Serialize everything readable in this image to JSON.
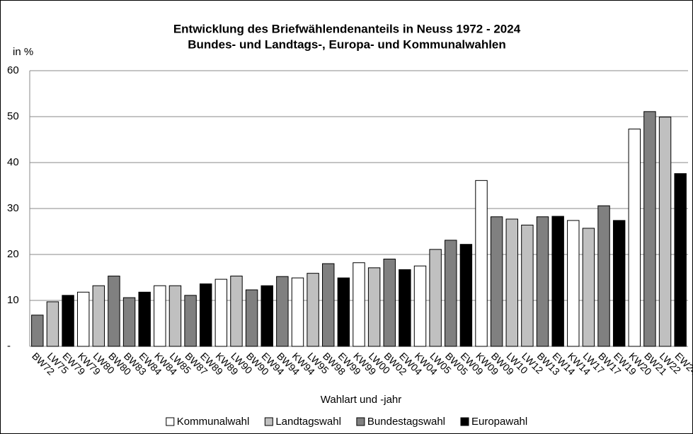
{
  "chart_data": {
    "type": "bar",
    "title": "Entwicklung des Briefwählendenanteils in Neuss 1972 - 2024",
    "subtitle": "Bundes- und Landtags-, Europa- und Kommunalwahlen",
    "y_label": "in %",
    "x_label": "Wahlart und -jahr",
    "categories": [
      "BW72",
      "LW75",
      "EW79",
      "KW79",
      "LW80",
      "BW80",
      "BW83",
      "EW84",
      "KW84",
      "LW85",
      "BW87",
      "EW89",
      "KW89",
      "LW90",
      "BW90",
      "EW94",
      "BW94",
      "KW94",
      "LW95",
      "BW98",
      "EW99",
      "KW99",
      "LW00",
      "BW02",
      "EW04",
      "KW04",
      "LW05",
      "BW05",
      "EW09",
      "KW09",
      "BW09",
      "LW10",
      "LW12",
      "BW13",
      "EW14",
      "KW14",
      "LW17",
      "BW17",
      "EW19",
      "KW20",
      "BW21",
      "LW22",
      "EW24"
    ],
    "series": [
      {
        "name": "Kommunalwahl",
        "color": "#ffffff",
        "values": [
          null,
          null,
          null,
          11.8,
          null,
          null,
          null,
          null,
          13.2,
          null,
          null,
          null,
          14.6,
          null,
          null,
          null,
          null,
          14.9,
          null,
          null,
          null,
          18.2,
          null,
          null,
          null,
          17.5,
          null,
          null,
          null,
          36.1,
          null,
          null,
          null,
          null,
          null,
          27.4,
          null,
          null,
          null,
          47.3,
          null,
          null,
          null
        ]
      },
      {
        "name": "Landtagswahl",
        "color": "#c0c0c0",
        "values": [
          null,
          9.7,
          null,
          null,
          13.2,
          null,
          null,
          null,
          null,
          13.2,
          null,
          null,
          null,
          15.3,
          null,
          null,
          null,
          null,
          15.9,
          null,
          null,
          null,
          17.1,
          null,
          null,
          null,
          21.1,
          null,
          null,
          null,
          null,
          27.7,
          26.4,
          null,
          null,
          null,
          25.7,
          null,
          null,
          null,
          null,
          49.9,
          null
        ]
      },
      {
        "name": "Bundestagswahl",
        "color": "#808080",
        "values": [
          6.8,
          null,
          null,
          null,
          null,
          15.3,
          10.6,
          null,
          null,
          null,
          11.1,
          null,
          null,
          null,
          12.3,
          null,
          15.2,
          null,
          null,
          18.0,
          null,
          null,
          null,
          19.0,
          null,
          null,
          null,
          23.1,
          null,
          null,
          28.2,
          null,
          null,
          28.2,
          null,
          null,
          null,
          30.6,
          null,
          null,
          51.1,
          null,
          null
        ]
      },
      {
        "name": "Europawahl",
        "color": "#000000",
        "values": [
          null,
          null,
          11.1,
          null,
          null,
          null,
          null,
          11.8,
          null,
          null,
          null,
          13.6,
          null,
          null,
          null,
          13.2,
          null,
          null,
          null,
          null,
          14.9,
          null,
          null,
          null,
          16.7,
          null,
          null,
          null,
          22.2,
          null,
          null,
          null,
          null,
          null,
          28.3,
          null,
          null,
          null,
          27.4,
          null,
          null,
          null,
          37.6
        ]
      }
    ],
    "ylim": [
      0,
      60
    ],
    "yticks": [
      {
        "value": 0,
        "label": "-"
      },
      10,
      20,
      30,
      40,
      50,
      60
    ],
    "grid": true
  }
}
